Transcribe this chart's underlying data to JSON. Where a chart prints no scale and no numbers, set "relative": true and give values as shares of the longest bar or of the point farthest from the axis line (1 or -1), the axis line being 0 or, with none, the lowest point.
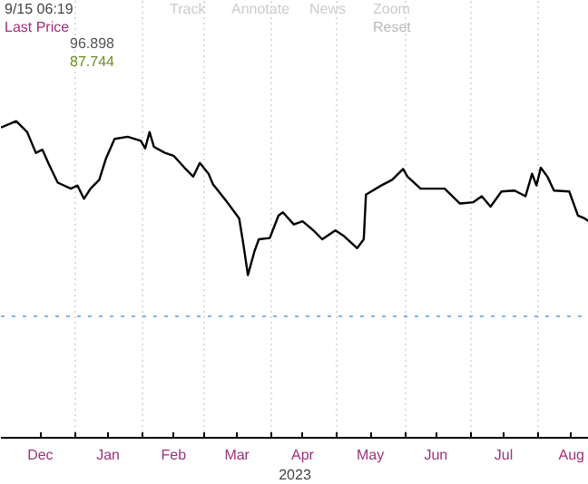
{
  "chart_data": {
    "type": "line",
    "relative": true,
    "xlabel": "2023",
    "annotations": [
      "9/15 06:19",
      "Last Price",
      "96.898",
      "87.744",
      "Track",
      "Annotate",
      "News",
      "Zoom",
      "Reset"
    ],
    "x": [
      "2022-11-28",
      "2022-12-05",
      "2022-12-10",
      "2022-12-14",
      "2022-12-17",
      "2022-12-20",
      "2022-12-24",
      "2022-12-30",
      "2023-01-02",
      "2023-01-05",
      "2023-01-08",
      "2023-01-12",
      "2023-01-15",
      "2023-01-19",
      "2023-01-25",
      "2023-01-31",
      "2023-02-02",
      "2023-02-04",
      "2023-02-06",
      "2023-02-11",
      "2023-02-15",
      "2023-02-20",
      "2023-02-24",
      "2023-02-27",
      "2023-03-03",
      "2023-03-05",
      "2023-03-11",
      "2023-03-17",
      "2023-03-19",
      "2023-03-21",
      "2023-03-24",
      "2023-03-26",
      "2023-03-31",
      "2023-04-04",
      "2023-04-06",
      "2023-04-11",
      "2023-04-15",
      "2023-04-20",
      "2023-04-24",
      "2023-04-30",
      "2023-05-04",
      "2023-05-10",
      "2023-05-13",
      "2023-05-14",
      "2023-05-21",
      "2023-05-26",
      "2023-05-31",
      "2023-06-02",
      "2023-06-08",
      "2023-06-19",
      "2023-06-26",
      "2023-07-02",
      "2023-07-06",
      "2023-07-10",
      "2023-07-15",
      "2023-07-21",
      "2023-07-26",
      "2023-07-29",
      "2023-07-31",
      "2023-08-02",
      "2023-08-05",
      "2023-08-08",
      "2023-08-15",
      "2023-08-19",
      "2023-08-22",
      "2023-08-24"
    ],
    "series": [
      {
        "color": "#000000",
        "values": [
          0.98,
          1.0,
          0.966,
          0.9,
          0.91,
          0.863,
          0.806,
          0.787,
          0.797,
          0.755,
          0.787,
          0.815,
          0.881,
          0.944,
          0.951,
          0.938,
          0.914,
          0.966,
          0.919,
          0.9,
          0.891,
          0.853,
          0.825,
          0.868,
          0.834,
          0.801,
          0.749,
          0.693,
          0.608,
          0.514,
          0.589,
          0.627,
          0.631,
          0.702,
          0.712,
          0.674,
          0.684,
          0.655,
          0.627,
          0.655,
          0.637,
          0.599,
          0.627,
          0.768,
          0.797,
          0.815,
          0.849,
          0.825,
          0.787,
          0.787,
          0.74,
          0.744,
          0.763,
          0.73,
          0.778,
          0.781,
          0.763,
          0.834,
          0.797,
          0.853,
          0.825,
          0.781,
          0.778,
          0.702,
          0.693,
          0.684
        ]
      }
    ],
    "xlim": [
      "2022-11-28",
      "2023-08-24"
    ],
    "xticks": [
      {
        "value": "2023-01-01",
        "label": null
      },
      {
        "value": "2023-02-01",
        "label": null
      },
      {
        "value": "2023-03-01",
        "label": null
      },
      {
        "value": "2023-04-01",
        "label": null
      },
      {
        "value": "2023-05-01",
        "label": null
      },
      {
        "value": "2023-06-01",
        "label": null
      },
      {
        "value": "2023-07-01",
        "label": null
      },
      {
        "value": "2023-08-01",
        "label": null
      },
      {
        "value": "2022-12-16",
        "label": "Dec"
      },
      {
        "value": "2023-01-16",
        "label": "Jan"
      },
      {
        "value": "2023-02-15",
        "label": "Feb"
      },
      {
        "value": "2023-03-16",
        "label": "Mar"
      },
      {
        "value": "2023-04-15",
        "label": "Apr"
      },
      {
        "value": "2023-05-16",
        "label": "May"
      },
      {
        "value": "2023-06-15",
        "label": "Jun"
      },
      {
        "value": "2023-07-16",
        "label": "Jul"
      },
      {
        "value": "2023-08-16",
        "label": "Aug"
      }
    ],
    "ref_lines": [
      {
        "axis": "y",
        "value": 0.384,
        "color": "#7fb2f0",
        "line_style": "dotted"
      }
    ],
    "grid": "x"
  }
}
